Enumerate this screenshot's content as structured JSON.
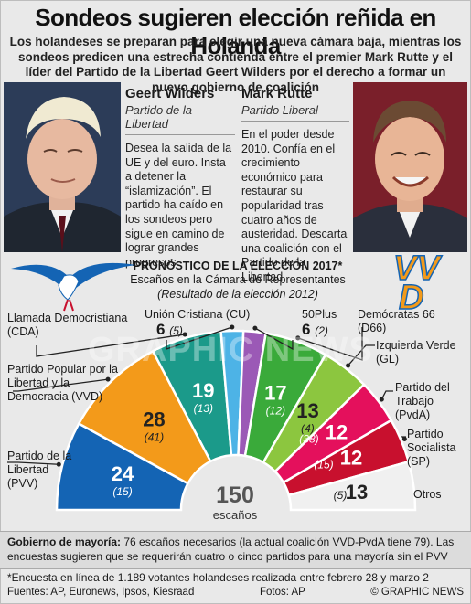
{
  "header": {
    "title": "Sondeos sugieren elección reñida en Holanda",
    "subtitle": "Los holandeses se preparan para elegir una nueva cámara baja, mientras los sondeos predicen una estrecha contienda entre el premier Mark Rutte y el líder del Partido de la Libertad Geert Wilders por el derecho a formar un nuevo gobierno de coalición"
  },
  "candidates": {
    "wilders": {
      "name": "Geert Wilders",
      "party": "Partido de la Libertad",
      "desc": "Desea la salida de la UE y del euro. Insta a detener la “islamización”. El partido ha caído en los sondeos pero sigue en camino de lograr grandes progresos"
    },
    "rutte": {
      "name": "Mark Rutte",
      "party": "Partido Liberal",
      "desc": "En el poder desde 2010. Confía en el crecimiento económico para restaurar su popularidad tras cuatro años de austeridad. Descarta una coalición con el Partido de la Libertad"
    }
  },
  "forecast": {
    "title": "PRONÓSTICO DE LA ELECCIÓN 2017*",
    "subtitle": "Escaños en la Cámara de Representantes",
    "result_note": "(Resultado de la elección 2012)",
    "total": "150",
    "total_label": "escaños"
  },
  "chart_data": {
    "type": "pie",
    "title": "PRONÓSTICO DE LA ELECCIÓN 2017*",
    "subtitle": "Escaños en la Cámara de Representantes",
    "shape": "semicircle",
    "total_seats": 150,
    "series": [
      {
        "name": "Forecast 2017",
        "values": [
          24,
          28,
          19,
          6,
          6,
          17,
          13,
          12,
          12,
          13
        ]
      },
      {
        "name": "Resultado de la elección 2012",
        "values": [
          15,
          41,
          13,
          5,
          2,
          12,
          4,
          38,
          15,
          5
        ]
      }
    ],
    "categories": [
      "Partido de la Libertad (PVV)",
      "Partido Popular por la Libertad y la Democracia (VVD)",
      "Llamada Democristiana (CDA)",
      "Unión Cristiana (CU)",
      "50Plus",
      "Demócratas 66 (D66)",
      "Izquierda Verde (GL)",
      "Partido del Trabajo (PvdA)",
      "Partido Socialista (SP)",
      "Otros"
    ],
    "colors": [
      "#1464b4",
      "#f39a1a",
      "#1b9a8a",
      "#4db3e6",
      "#9b59b6",
      "#3aaa3a",
      "#8cc63f",
      "#e4105c",
      "#c8102e",
      "#f0f0f0"
    ]
  },
  "labels": {
    "cda": "Llamada Democristiana (CDA)",
    "vvd": "Partido Popular por la Libertad y la Democracia (VVD)",
    "pvv": "Partido de la Libertad (PVV)",
    "cu": "Unión Cristiana (CU)",
    "plus50": "50Plus",
    "d66": "Demócratas 66 (D66)",
    "gl": "Izquierda Verde (GL)",
    "pvda": "Partido del Trabajo (PvdA)",
    "sp": "Partido Socialista (SP)",
    "otros": "Otros"
  },
  "footer": {
    "majority_label": "Gobierno de mayoría:",
    "majority_text": "76 escaños necesarios (la actual coalición VVD-PvdA tiene 79). Las encuestas sugieren que se requerirán cuatro o cinco partidos para una mayoría sin el PVV",
    "footnote": "*Encuesta en línea de 1.189 votantes holandeses realizada entre febrero 28 y marzo 2",
    "sources": "Fuentes: AP, Euronews, Ipsos, Kiesraad",
    "photos": "Fotos: AP",
    "credit": "© GRAPHIC NEWS",
    "vvd_logo": "VVD",
    "watermark": "GRAPHIC NEWS"
  }
}
